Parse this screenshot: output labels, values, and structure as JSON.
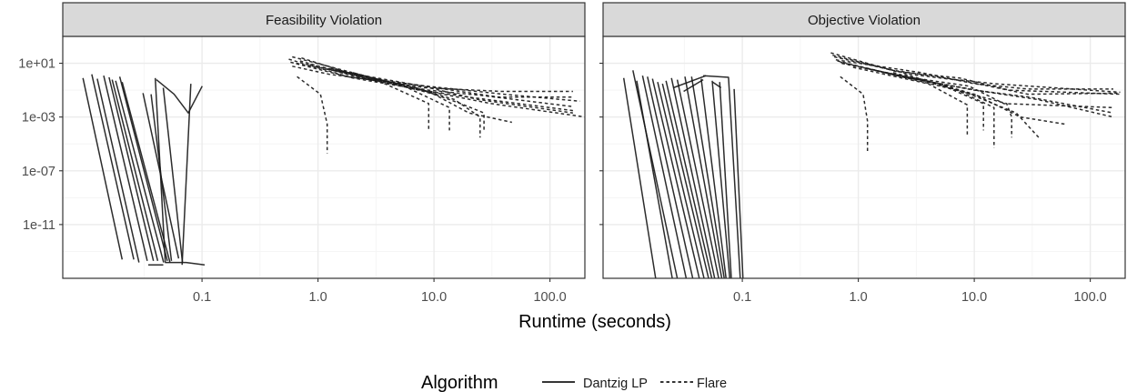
{
  "chart_data": {
    "type": "line",
    "x_scale": "log10",
    "y_scale": "log10",
    "xlabel": "Runtime (seconds)",
    "ylabel": "",
    "xlim": [
      0.0063,
      200
    ],
    "ylim": [
      1e-15,
      1000
    ],
    "x_ticks": [
      {
        "value": 0.1,
        "label": "0.1"
      },
      {
        "value": 1,
        "label": "1.0"
      },
      {
        "value": 10,
        "label": "10.0"
      },
      {
        "value": 100,
        "label": "100.0"
      }
    ],
    "y_ticks": [
      {
        "value": 10,
        "label": "1e+01"
      },
      {
        "value": 0.001,
        "label": "1e-03"
      },
      {
        "value": 1e-07,
        "label": "1e-07"
      },
      {
        "value": 1e-11,
        "label": "1e-11"
      }
    ],
    "grid": true,
    "legend": {
      "title": "Algorithm",
      "position": "bottom",
      "items": [
        {
          "label": "Dantzig LP",
          "style": "solid"
        },
        {
          "label": "Flare",
          "style": "dashed"
        }
      ]
    },
    "colors": {
      "line": "#1a1a1a",
      "strip": "#d9d9d9",
      "grid_major": "#ebebeb",
      "grid_minor": "#f5f5f5"
    },
    "panels": [
      {
        "title": "Feasibility Violation",
        "series": [
          {
            "algorithm": "Dantzig LP",
            "x": [
              0.0094,
              0.0205
            ],
            "y": [
              0.8,
              2.5e-14
            ]
          },
          {
            "algorithm": "Dantzig LP",
            "x": [
              0.0112,
              0.0258
            ],
            "y": [
              1.5,
              2.5e-14
            ]
          },
          {
            "algorithm": "Dantzig LP",
            "x": [
              0.0125,
              0.0286
            ],
            "y": [
              0.7,
              1.5e-14
            ]
          },
          {
            "algorithm": "Dantzig LP",
            "x": [
              0.0142,
              0.0337
            ],
            "y": [
              1.2,
              2e-14
            ]
          },
          {
            "algorithm": "Dantzig LP",
            "x": [
              0.0158,
              0.0381
            ],
            "y": [
              0.9,
              2e-14
            ]
          },
          {
            "algorithm": "Dantzig LP",
            "x": [
              0.0168,
              0.0415
            ],
            "y": [
              0.6,
              2e-14
            ]
          },
          {
            "algorithm": "Dantzig LP",
            "x": [
              0.018,
              0.0467
            ],
            "y": [
              0.5,
              1.5e-14
            ]
          },
          {
            "algorithm": "Dantzig LP",
            "x": [
              0.0195,
              0.0503
            ],
            "y": [
              1.0,
              2e-14
            ]
          },
          {
            "algorithm": "Dantzig LP",
            "x": [
              0.0205,
              0.053
            ],
            "y": [
              0.4,
              1.5e-14
            ]
          },
          {
            "algorithm": "Dantzig LP",
            "x": [
              0.031,
              0.0629
            ],
            "y": [
              0.06,
              3e-14
            ]
          },
          {
            "algorithm": "Dantzig LP",
            "x": [
              0.0364,
              0.0545
            ],
            "y": [
              0.05,
              2e-14
            ]
          },
          {
            "algorithm": "Dantzig LP",
            "x": [
              0.0395,
              0.0482
            ],
            "y": [
              0.8,
              1.5e-14
            ]
          },
          {
            "algorithm": "Dantzig LP",
            "x": [
              0.0463,
              0.0678
            ],
            "y": [
              0.15,
              1.5e-14
            ]
          },
          {
            "algorithm": "Dantzig LP",
            "x": [
              0.0344,
              0.0463
            ],
            "y": [
              1e-14,
              1e-14
            ]
          },
          {
            "algorithm": "Dantzig LP",
            "x": [
              0.048,
              0.073,
              0.1053
            ],
            "y": [
              1.5e-14,
              1.5e-14,
              1e-14
            ]
          },
          {
            "algorithm": "Dantzig LP",
            "x": [
              0.0404,
              0.0574,
              0.0762,
              0.1003
            ],
            "y": [
              0.6,
              0.05,
              0.002,
              0.2
            ]
          },
          {
            "algorithm": "Dantzig LP",
            "x": [
              0.0801,
              0.0674
            ],
            "y": [
              0.3,
              1e-14
            ]
          },
          {
            "algorithm": "Flare",
            "x": [
              0.56,
              2,
              6.2,
              31.2,
              203
            ],
            "y": [
              20,
              0.8,
              0.15,
              0.01,
              0.001
            ]
          },
          {
            "algorithm": "Flare",
            "x": [
              0.6,
              2.5,
              8,
              24,
              158
            ],
            "y": [
              30,
              1.2,
              0.2,
              0.02,
              0.002
            ]
          },
          {
            "algorithm": "Flare",
            "x": [
              0.65,
              1.7,
              6.7,
              20,
              158
            ],
            "y": [
              10,
              2,
              0.12,
              0.03,
              0.003
            ]
          },
          {
            "algorithm": "Flare",
            "x": [
              0.72,
              3,
              9,
              26,
              158
            ],
            "y": [
              25,
              0.5,
              0.1,
              0.04,
              0.006
            ]
          },
          {
            "algorithm": "Flare",
            "x": [
              0.6,
              1.25,
              5.5,
              40,
              181
            ],
            "y": [
              6,
              1.5,
              0.3,
              0.05,
              0.015
            ]
          },
          {
            "algorithm": "Flare",
            "x": [
              0.7,
              2.2,
              7,
              36,
              158
            ],
            "y": [
              15,
              0.9,
              0.25,
              0.03,
              0.03
            ]
          },
          {
            "algorithm": "Flare",
            "x": [
              0.58,
              1.8,
              8.5,
              38,
              158
            ],
            "y": [
              12,
              1,
              0.15,
              0.08,
              0.08
            ]
          },
          {
            "algorithm": "Flare",
            "x": [
              0.66,
              1.05,
              1.2,
              1.2
            ],
            "y": [
              1,
              0.05,
              0.0003,
              2e-06
            ]
          },
          {
            "algorithm": "Flare",
            "x": [
              0.85,
              3.5,
              9,
              9
            ],
            "y": [
              8,
              0.4,
              0.01,
              0.0001
            ]
          },
          {
            "algorithm": "Flare",
            "x": [
              1.1,
              5,
              13.6,
              13.6
            ],
            "y": [
              5,
              0.3,
              0.005,
              0.0001
            ]
          },
          {
            "algorithm": "Flare",
            "x": [
              1.3,
              6,
              15,
              25,
              25
            ],
            "y": [
              4,
              0.2,
              0.02,
              0.001,
              3e-05
            ]
          },
          {
            "algorithm": "Flare",
            "x": [
              1.5,
              7,
              17,
              27,
              27
            ],
            "y": [
              3,
              0.15,
              0.01,
              0.002,
              0.0001
            ]
          },
          {
            "algorithm": "Flare",
            "x": [
              2,
              10,
              20,
              47
            ],
            "y": [
              2,
              0.05,
              0.002,
              0.0004
            ]
          }
        ]
      },
      {
        "title": "Objective Violation",
        "series": [
          {
            "algorithm": "Dantzig LP",
            "x": [
              0.0095,
              0.0179
            ],
            "y": [
              0.8,
              1e-15
            ]
          },
          {
            "algorithm": "Dantzig LP",
            "x": [
              0.0114,
              0.0275
            ],
            "y": [
              3,
              1e-15
            ]
          },
          {
            "algorithm": "Dantzig LP",
            "x": [
              0.0123,
              0.0249
            ],
            "y": [
              0.5,
              1e-15
            ]
          },
          {
            "algorithm": "Dantzig LP",
            "x": [
              0.0138,
              0.0328
            ],
            "y": [
              1.2,
              1e-15
            ]
          },
          {
            "algorithm": "Dantzig LP",
            "x": [
              0.0152,
              0.0374
            ],
            "y": [
              1.0,
              1e-15
            ]
          },
          {
            "algorithm": "Dantzig LP",
            "x": [
              0.0168,
              0.0426
            ],
            "y": [
              0.7,
              1e-15
            ]
          },
          {
            "algorithm": "Dantzig LP",
            "x": [
              0.0186,
              0.0468
            ],
            "y": [
              0.4,
              1e-15
            ]
          },
          {
            "algorithm": "Dantzig LP",
            "x": [
              0.0205,
              0.0512
            ],
            "y": [
              0.3,
              1e-15
            ]
          },
          {
            "algorithm": "Dantzig LP",
            "x": [
              0.022,
              0.0545
            ],
            "y": [
              0.5,
              1e-15
            ]
          },
          {
            "algorithm": "Dantzig LP",
            "x": [
              0.0245,
              0.0578
            ],
            "y": [
              0.8,
              1e-15
            ]
          },
          {
            "algorithm": "Dantzig LP",
            "x": [
              0.0275,
              0.0625
            ],
            "y": [
              0.6,
              1e-15
            ]
          },
          {
            "algorithm": "Dantzig LP",
            "x": [
              0.032,
              0.0665
            ],
            "y": [
              1.0,
              1e-15
            ]
          },
          {
            "algorithm": "Dantzig LP",
            "x": [
              0.0365,
              0.0698
            ],
            "y": [
              1.0,
              1e-15
            ]
          },
          {
            "algorithm": "Dantzig LP",
            "x": [
              0.0442,
              0.0724
            ],
            "y": [
              0.7,
              1e-15
            ]
          },
          {
            "algorithm": "Dantzig LP",
            "x": [
              0.055,
              0.078
            ],
            "y": [
              0.5,
              1e-15
            ]
          },
          {
            "algorithm": "Dantzig LP",
            "x": [
              0.0638,
              0.0804
            ],
            "y": [
              0.4,
              1e-15
            ]
          },
          {
            "algorithm": "Dantzig LP",
            "x": [
              0.085,
              0.1012
            ],
            "y": [
              0.12,
              1e-15
            ]
          },
          {
            "algorithm": "Dantzig LP",
            "x": [
              0.0312,
              0.046
            ],
            "y": [
              0.08,
              0.6
            ]
          },
          {
            "algorithm": "Dantzig LP",
            "x": [
              0.0254,
              0.0486
            ],
            "y": [
              0.15,
              1.2
            ]
          },
          {
            "algorithm": "Dantzig LP",
            "x": [
              0.046,
              0.076,
              0.096
            ],
            "y": [
              1.2,
              0.9,
              1e-15
            ]
          },
          {
            "algorithm": "Dantzig LP",
            "x": [
              0.0555,
              0.0655
            ],
            "y": [
              0.4,
              0.15
            ]
          },
          {
            "algorithm": "Flare",
            "x": [
              0.58,
              2.1,
              7.5,
              20,
              181
            ],
            "y": [
              60,
              2.5,
              0.8,
              0.1,
              0.05
            ]
          },
          {
            "algorithm": "Flare",
            "x": [
              0.6,
              2,
              7,
              15,
              181
            ],
            "y": [
              40,
              3,
              0.6,
              0.3,
              0.07
            ]
          },
          {
            "algorithm": "Flare",
            "x": [
              0.62,
              2.8,
              8,
              29,
              181
            ],
            "y": [
              30,
              1.5,
              0.5,
              0.05,
              0.06
            ]
          },
          {
            "algorithm": "Flare",
            "x": [
              0.64,
              3.5,
              10,
              29,
              158
            ],
            "y": [
              18,
              2,
              0.3,
              0.12,
              0.12
            ]
          },
          {
            "algorithm": "Flare",
            "x": [
              0.66,
              2.2,
              9,
              18,
              158
            ],
            "y": [
              15,
              1.2,
              0.2,
              0.01,
              0.005
            ]
          },
          {
            "algorithm": "Flare",
            "x": [
              0.7,
              2.5,
              10,
              30,
              158
            ],
            "y": [
              12,
              0.9,
              0.1,
              0.03,
              0.002
            ]
          },
          {
            "algorithm": "Flare",
            "x": [
              0.72,
              3,
              12,
              35,
              158
            ],
            "y": [
              10,
              0.7,
              0.08,
              0.02,
              0.001
            ]
          },
          {
            "algorithm": "Flare",
            "x": [
              0.7,
              1.1,
              1.2,
              1.2
            ],
            "y": [
              1,
              0.05,
              0.0005,
              2e-06
            ]
          },
          {
            "algorithm": "Flare",
            "x": [
              0.9,
              4,
              8.7,
              8.7
            ],
            "y": [
              5,
              0.3,
              0.008,
              5e-05
            ]
          },
          {
            "algorithm": "Flare",
            "x": [
              1.2,
              5,
              12,
              12
            ],
            "y": [
              4,
              0.3,
              0.01,
              0.0001
            ]
          },
          {
            "algorithm": "Flare",
            "x": [
              1.4,
              6,
              14.8,
              14.8
            ],
            "y": [
              3,
              0.2,
              0.005,
              5e-06
            ]
          },
          {
            "algorithm": "Flare",
            "x": [
              1.7,
              7,
              19,
              21,
              21
            ],
            "y": [
              2,
              0.1,
              0.01,
              0.001,
              3e-05
            ]
          },
          {
            "algorithm": "Flare",
            "x": [
              2,
              8,
              23,
              36
            ],
            "y": [
              2,
              0.08,
              0.002,
              3e-05
            ]
          },
          {
            "algorithm": "Flare",
            "x": [
              2.5,
              10,
              25,
              60
            ],
            "y": [
              1.5,
              0.05,
              0.001,
              0.0003
            ]
          }
        ]
      }
    ]
  }
}
